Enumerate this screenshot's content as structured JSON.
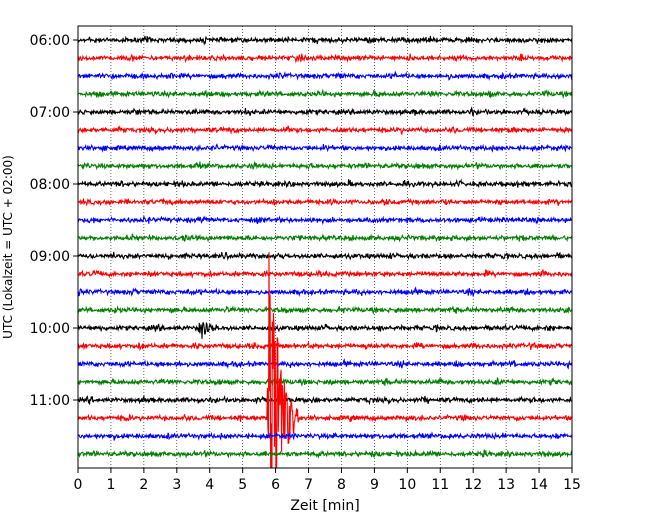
{
  "chart_data": {
    "type": "line",
    "title": "",
    "xlabel": "Zeit  [min]",
    "ylabel": "UTC (Lokalzeit = UTC + 02:00)",
    "xlim": [
      0,
      15
    ],
    "x_ticks": [
      0,
      1,
      2,
      3,
      4,
      5,
      6,
      7,
      8,
      9,
      10,
      11,
      12,
      13,
      14,
      15
    ],
    "x_tick_labels": [
      "0",
      "1",
      "2",
      "3",
      "4",
      "5",
      "6",
      "7",
      "8",
      "9",
      "10",
      "11",
      "12",
      "13",
      "14",
      "15"
    ],
    "y_tick_labels": [
      "06:00",
      "07:00",
      "08:00",
      "09:00",
      "10:00",
      "11:00"
    ],
    "grid": "vertical dotted",
    "trace_interval_minutes": 15,
    "trace_colors": [
      "#000000",
      "#ff0000",
      "#0000ff",
      "#008000"
    ],
    "traces": [
      {
        "start": "06:00",
        "color": "#000000"
      },
      {
        "start": "06:15",
        "color": "#ff0000"
      },
      {
        "start": "06:30",
        "color": "#0000ff"
      },
      {
        "start": "06:45",
        "color": "#008000"
      },
      {
        "start": "07:00",
        "color": "#000000"
      },
      {
        "start": "07:15",
        "color": "#ff0000"
      },
      {
        "start": "07:30",
        "color": "#0000ff"
      },
      {
        "start": "07:45",
        "color": "#008000"
      },
      {
        "start": "08:00",
        "color": "#000000"
      },
      {
        "start": "08:15",
        "color": "#ff0000"
      },
      {
        "start": "08:30",
        "color": "#0000ff"
      },
      {
        "start": "08:45",
        "color": "#008000"
      },
      {
        "start": "09:00",
        "color": "#000000"
      },
      {
        "start": "09:15",
        "color": "#ff0000"
      },
      {
        "start": "09:30",
        "color": "#0000ff"
      },
      {
        "start": "09:45",
        "color": "#008000"
      },
      {
        "start": "10:00",
        "color": "#000000"
      },
      {
        "start": "10:15",
        "color": "#ff0000"
      },
      {
        "start": "10:30",
        "color": "#0000ff"
      },
      {
        "start": "10:45",
        "color": "#008000"
      },
      {
        "start": "11:00",
        "color": "#000000"
      },
      {
        "start": "11:15",
        "color": "#ff0000"
      },
      {
        "start": "11:30",
        "color": "#0000ff"
      },
      {
        "start": "11:45",
        "color": "#008000"
      }
    ],
    "events": [
      {
        "name": "earthquake",
        "trace_start": "11:15",
        "time_min": 5.8,
        "duration_min": 0.9
      },
      {
        "name": "local-spike",
        "trace_start": "10:00",
        "time_min": 3.7,
        "duration_min": 0.7
      }
    ]
  }
}
